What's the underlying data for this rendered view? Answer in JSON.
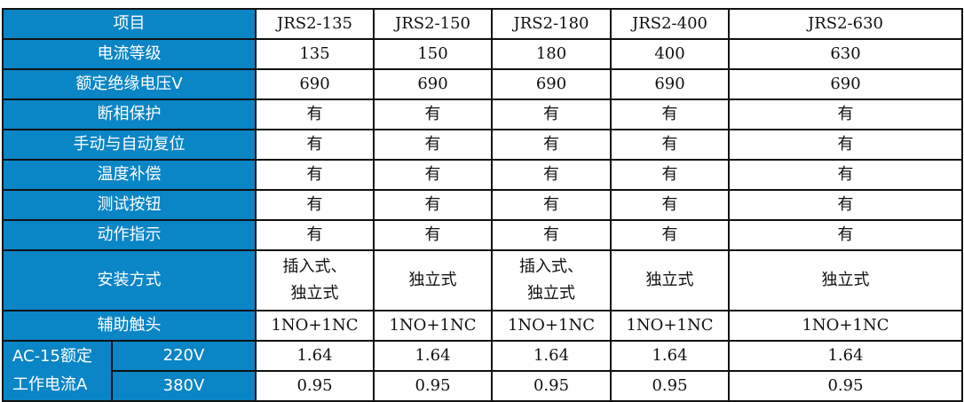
{
  "header": {
    "label": "项目",
    "models": [
      "JRS2-135",
      "JRS2-150",
      "JRS2-180",
      "JRS2-400",
      "JRS2-630"
    ]
  },
  "rows": [
    {
      "label": "电流等级",
      "values": [
        "135",
        "150",
        "180",
        "400",
        "630"
      ]
    },
    {
      "label": "额定绝缘电压V",
      "values": [
        "690",
        "690",
        "690",
        "690",
        "690"
      ]
    },
    {
      "label": "断相保护",
      "values": [
        "有",
        "有",
        "有",
        "有",
        "有"
      ]
    },
    {
      "label": "手动与自动复位",
      "values": [
        "有",
        "有",
        "有",
        "有",
        "有"
      ]
    },
    {
      "label": "温度补偿",
      "values": [
        "有",
        "有",
        "有",
        "有",
        "有"
      ]
    },
    {
      "label": "测试按钮",
      "values": [
        "有",
        "有",
        "有",
        "有",
        "有"
      ]
    },
    {
      "label": "动作指示",
      "values": [
        "有",
        "有",
        "有",
        "有",
        "有"
      ]
    }
  ],
  "mount": {
    "label": "安装方式",
    "values": [
      [
        "插入式、",
        "独立式"
      ],
      [
        "独立式"
      ],
      [
        "插入式、",
        "独立式"
      ],
      [
        "独立式"
      ],
      [
        "独立式"
      ]
    ]
  },
  "aux": {
    "label": "辅助触头",
    "values": [
      "1NO+1NC",
      "1NO+1NC",
      "1NO+1NC",
      "1NO+1NC",
      "1NO+1NC"
    ]
  },
  "ac15": {
    "label_line1": "AC-15额定",
    "label_line2": "工作电流A",
    "rows": [
      {
        "voltage": "220V",
        "values": [
          "1.64",
          "1.64",
          "1.64",
          "1.64",
          "1.64"
        ]
      },
      {
        "voltage": "380V",
        "values": [
          "0.95",
          "0.95",
          "0.95",
          "0.95",
          "0.95"
        ]
      }
    ]
  },
  "colors": {
    "header_bg": "#0a85c6"
  }
}
